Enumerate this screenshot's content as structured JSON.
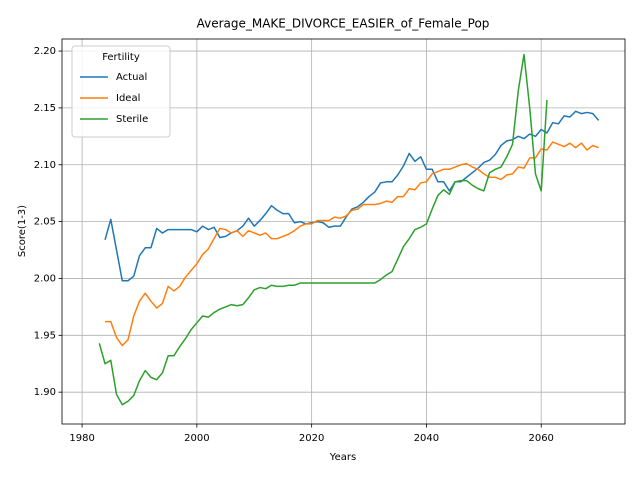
{
  "chart_data": {
    "type": "line",
    "title": "Average_MAKE_DIVORCE_EASIER_of_Female_Pop",
    "xlabel": "Years",
    "ylabel": "Score(1-3)",
    "x": [
      1983,
      1984,
      1985,
      1986,
      1987,
      1988,
      1989,
      1990,
      1991,
      1992,
      1993,
      1994,
      1995,
      1996,
      1997,
      1998,
      1999,
      2000,
      2001,
      2002,
      2003,
      2004,
      2005,
      2006,
      2007,
      2008,
      2009,
      2010,
      2011,
      2012,
      2013,
      2014,
      2015,
      2016,
      2017,
      2018,
      2019,
      2020,
      2021,
      2022,
      2023,
      2024,
      2025,
      2026,
      2027,
      2028,
      2029,
      2030,
      2031,
      2032,
      2033,
      2034,
      2035,
      2036,
      2037,
      2038,
      2039,
      2040,
      2041,
      2042,
      2043,
      2044,
      2045,
      2046,
      2047,
      2048,
      2049,
      2050,
      2051,
      2052,
      2053,
      2054,
      2055,
      2056,
      2057,
      2058,
      2059,
      2060,
      2061,
      2062,
      2063,
      2064,
      2065,
      2066,
      2067,
      2068,
      2069,
      2070
    ],
    "series": [
      {
        "name": "Actual",
        "color": "#1f77b4",
        "values": [
          null,
          2.034,
          2.052,
          2.025,
          1.998,
          1.998,
          2.002,
          2.02,
          2.027,
          2.027,
          2.044,
          2.04,
          2.043,
          2.043,
          2.043,
          2.043,
          2.043,
          2.041,
          2.046,
          2.043,
          2.045,
          2.036,
          2.037,
          2.04,
          2.042,
          2.046,
          2.053,
          2.046,
          2.051,
          2.057,
          2.064,
          2.06,
          2.057,
          2.057,
          2.049,
          2.05,
          2.048,
          2.049,
          2.05,
          2.049,
          2.045,
          2.046,
          2.046,
          2.054,
          2.061,
          2.063,
          2.067,
          2.072,
          2.076,
          2.084,
          2.085,
          2.085,
          2.091,
          2.099,
          2.11,
          2.103,
          2.107,
          2.096,
          2.096,
          2.085,
          2.085,
          2.077,
          2.085,
          2.085,
          2.089,
          2.093,
          2.097,
          2.102,
          2.104,
          2.109,
          2.117,
          2.121,
          2.122,
          2.125,
          2.123,
          2.127,
          2.125,
          2.131,
          2.128,
          2.137,
          2.136,
          2.143,
          2.142,
          2.147,
          2.145,
          2.146,
          2.145,
          2.139
        ]
      },
      {
        "name": "Ideal",
        "color": "#ff7f0e",
        "values": [
          null,
          1.962,
          1.962,
          1.948,
          1.941,
          1.946,
          1.967,
          1.98,
          1.987,
          1.98,
          1.974,
          1.978,
          1.993,
          1.989,
          1.993,
          2.001,
          2.007,
          2.013,
          2.021,
          2.026,
          2.035,
          2.044,
          2.043,
          2.04,
          2.042,
          2.037,
          2.042,
          2.04,
          2.038,
          2.04,
          2.035,
          2.035,
          2.037,
          2.039,
          2.042,
          2.046,
          2.048,
          2.048,
          2.051,
          2.051,
          2.051,
          2.054,
          2.053,
          2.055,
          2.06,
          2.061,
          2.065,
          2.065,
          2.065,
          2.066,
          2.068,
          2.067,
          2.072,
          2.072,
          2.079,
          2.078,
          2.084,
          2.085,
          2.092,
          2.094,
          2.096,
          2.096,
          2.098,
          2.1,
          2.101,
          2.098,
          2.096,
          2.092,
          2.089,
          2.089,
          2.087,
          2.091,
          2.092,
          2.098,
          2.097,
          2.106,
          2.106,
          2.114,
          2.113,
          2.12,
          2.118,
          2.116,
          2.119,
          2.115,
          2.119,
          2.113,
          2.117,
          2.115
        ]
      },
      {
        "name": "Sterile",
        "color": "#2ca02c",
        "values": [
          1.943,
          1.925,
          1.928,
          1.898,
          1.889,
          1.892,
          1.897,
          1.91,
          1.919,
          1.913,
          1.911,
          1.917,
          1.932,
          1.932,
          1.94,
          1.947,
          1.955,
          1.961,
          1.967,
          1.966,
          1.97,
          1.973,
          1.975,
          1.977,
          1.976,
          1.977,
          1.983,
          1.99,
          1.992,
          1.991,
          1.994,
          1.993,
          1.993,
          1.994,
          1.994,
          1.996,
          1.996,
          1.996,
          1.996,
          1.996,
          1.996,
          1.996,
          1.996,
          1.996,
          1.996,
          1.996,
          1.996,
          1.996,
          1.996,
          1.999,
          2.003,
          2.006,
          2.017,
          2.028,
          2.035,
          2.043,
          2.045,
          2.048,
          2.061,
          2.073,
          2.078,
          2.074,
          2.085,
          2.086,
          2.086,
          2.082,
          2.079,
          2.077,
          2.093,
          2.096,
          2.098,
          2.107,
          2.118,
          2.165,
          2.197,
          2.15,
          2.092,
          2.077,
          2.157,
          null,
          null,
          null,
          null,
          null,
          null,
          null,
          null,
          null
        ]
      }
    ],
    "xlim": [
      1976.5,
      2074.6
    ],
    "ylim": [
      1.872,
      2.2106
    ],
    "xticks": [
      1980,
      2000,
      2020,
      2040,
      2060
    ],
    "yticks": [
      {
        "value": 1.9,
        "label": "1.90"
      },
      1.95,
      {
        "value": 2.0,
        "label": "2.00"
      },
      2.05,
      {
        "value": 2.1,
        "label": "2.10"
      },
      2.15,
      {
        "value": 2.2,
        "label": "2.20"
      }
    ],
    "grid": true,
    "legend_title": "Fertility",
    "legend_loc": "upper left"
  }
}
